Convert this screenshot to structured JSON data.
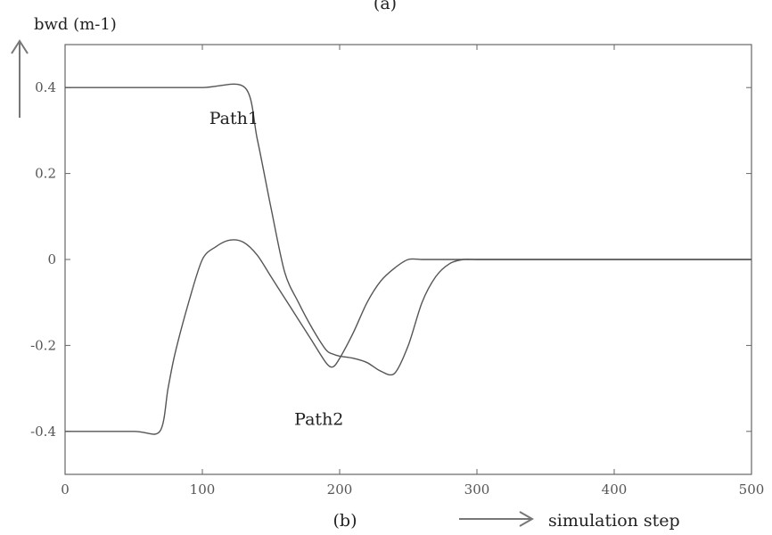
{
  "chart_data": {
    "type": "line",
    "title": "",
    "top_caption": "(a)",
    "bottom_caption": "(b)",
    "ylabel": "bwd (m-1)",
    "xlabel": "simulation step",
    "xlim": [
      0,
      500
    ],
    "ylim": [
      -0.5,
      0.5
    ],
    "xticks": [
      0,
      100,
      200,
      300,
      400,
      500
    ],
    "yticks": [
      0.4,
      0.2,
      0,
      -0.2,
      -0.4
    ],
    "ytick_labels": [
      "0.4",
      "0.2",
      "0",
      "-0.2",
      "-0.4"
    ],
    "grid": false,
    "series": [
      {
        "name": "Path1",
        "x": [
          0,
          50,
          100,
          131,
          140,
          150,
          160,
          170,
          180,
          190,
          195,
          200,
          210,
          220,
          230,
          240,
          250,
          260,
          270,
          280,
          290,
          300,
          320,
          350,
          400,
          450,
          500
        ],
        "y": [
          0.4,
          0.4,
          0.4,
          0.4,
          0.28,
          0.12,
          -0.03,
          -0.1,
          -0.16,
          -0.21,
          -0.22,
          -0.225,
          -0.23,
          -0.24,
          -0.26,
          -0.265,
          -0.2,
          -0.1,
          -0.04,
          -0.01,
          0.0,
          0.0,
          0.0,
          0.0,
          0.0,
          0.0,
          0.0
        ]
      },
      {
        "name": "Path2",
        "x": [
          0,
          50,
          69,
          75,
          80,
          90,
          100,
          110,
          120,
          130,
          140,
          150,
          160,
          170,
          180,
          190,
          195,
          200,
          210,
          220,
          230,
          240,
          250,
          260,
          270,
          280,
          300,
          350,
          400,
          450,
          500
        ],
        "y": [
          -0.4,
          -0.4,
          -0.4,
          -0.3,
          -0.22,
          -0.1,
          0.0,
          0.03,
          0.045,
          0.04,
          0.01,
          -0.04,
          -0.09,
          -0.14,
          -0.19,
          -0.24,
          -0.25,
          -0.23,
          -0.17,
          -0.1,
          -0.05,
          -0.02,
          0.0,
          0.0,
          0.0,
          0.0,
          0.0,
          0.0,
          0.0,
          0.0,
          0.0
        ]
      }
    ],
    "annotations": [
      {
        "text": "Path1",
        "x": 105,
        "y": 0.315
      },
      {
        "text": "Path2",
        "x": 167,
        "y": -0.385
      }
    ]
  }
}
